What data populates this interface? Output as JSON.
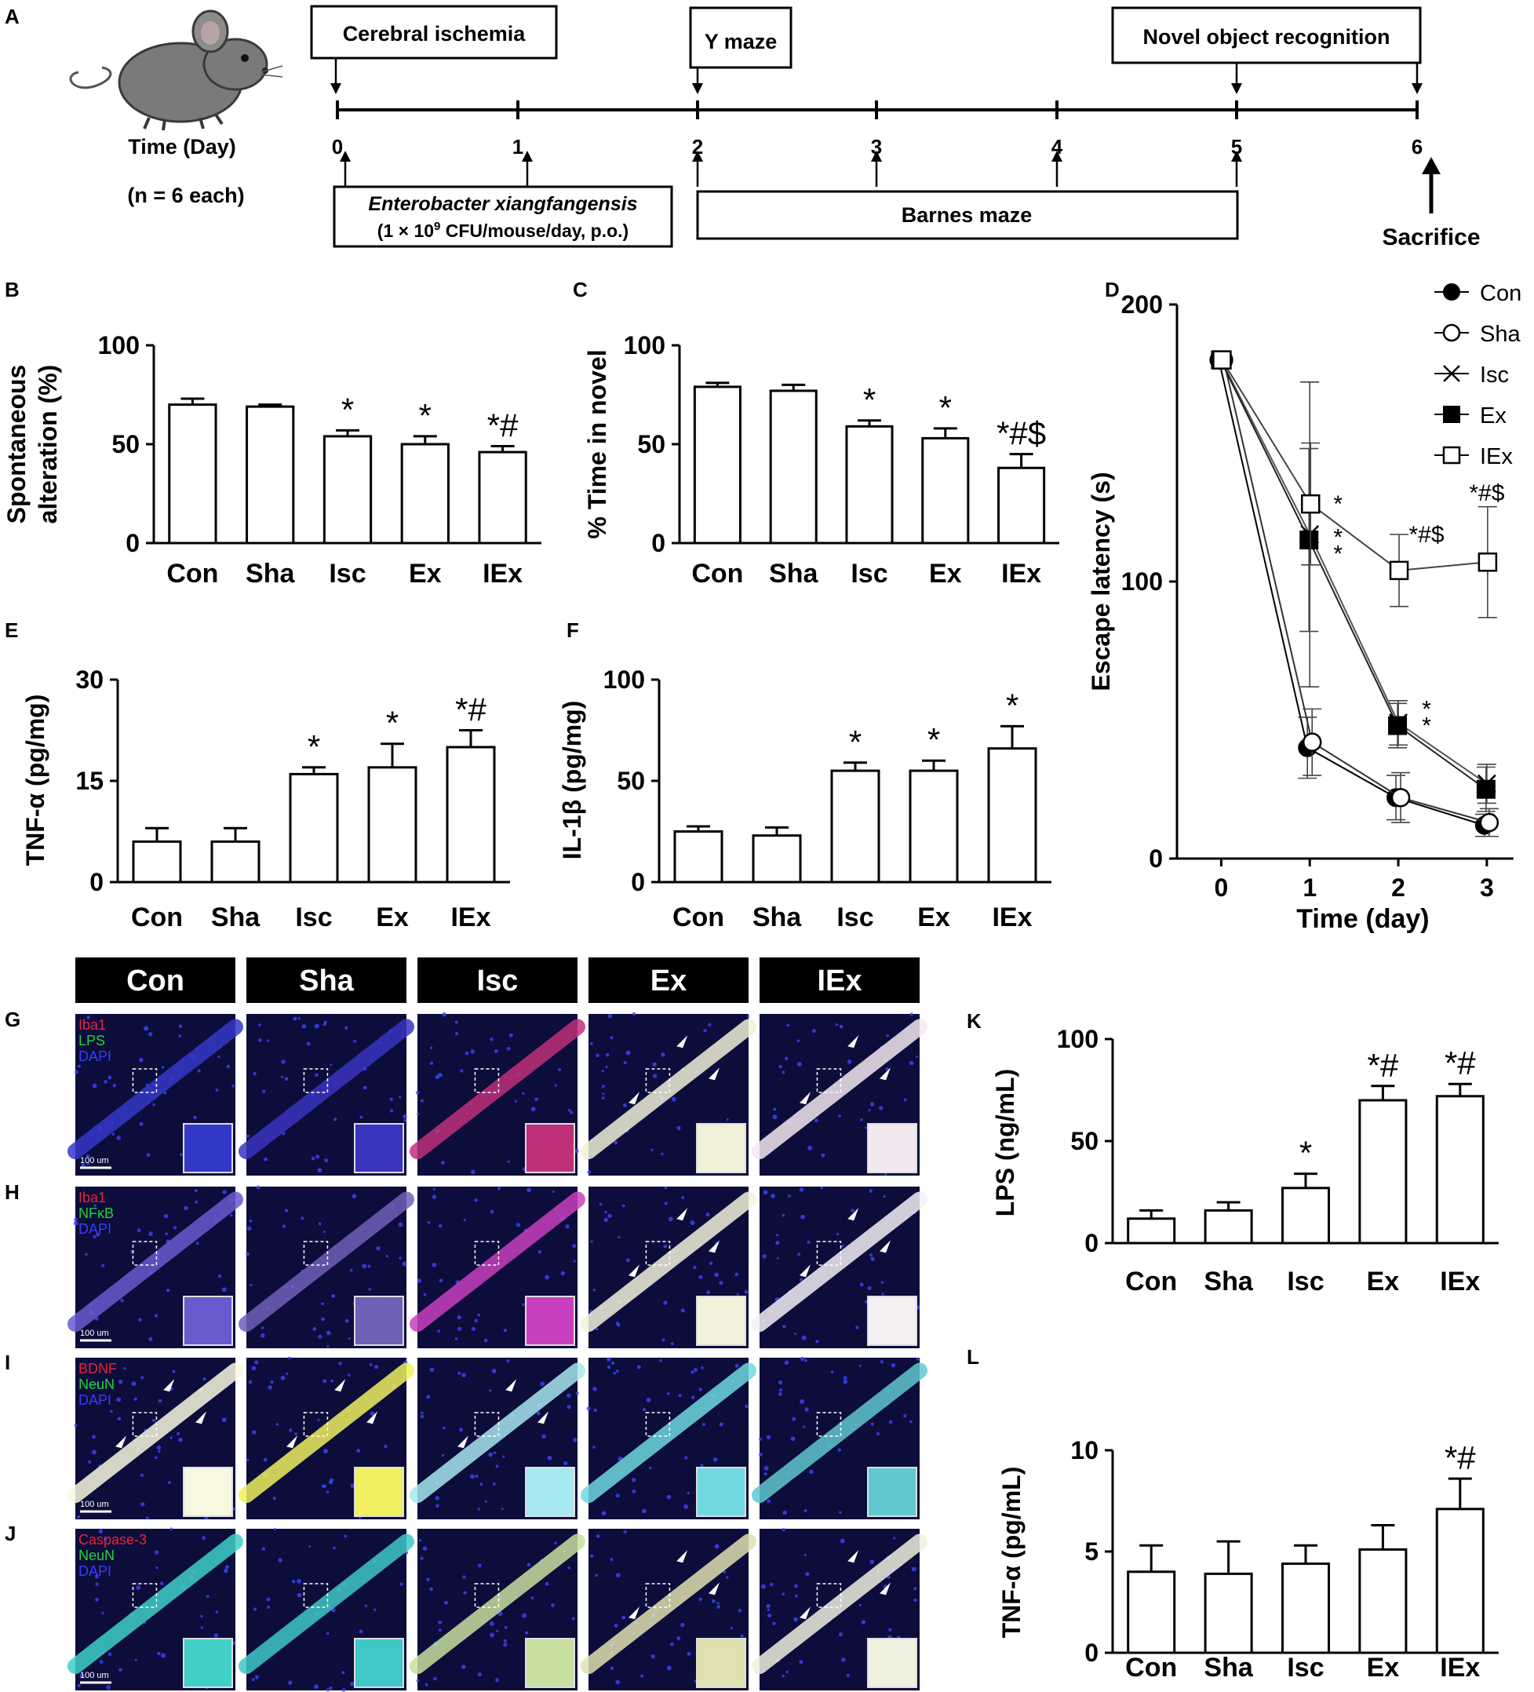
{
  "panel_letters": [
    "A",
    "B",
    "C",
    "D",
    "E",
    "F",
    "G",
    "H",
    "I",
    "J",
    "K",
    "L"
  ],
  "timeline": {
    "time_label": "Time (Day)",
    "n_label": "(n = 6 each)",
    "days": [
      "0",
      "1",
      "2",
      "3",
      "4",
      "5",
      "6"
    ],
    "events": {
      "ischemia": "Cerebral ischemia",
      "ymaze": "Y maze",
      "nor": "Novel object recognition",
      "barnes": "Barnes maze",
      "sacrifice": "Sacrifice"
    },
    "treatment_name": "Enterobacter xiangfangensis",
    "treatment_dose_a": "(1 × 10",
    "treatment_dose_sup": "9",
    "treatment_dose_b": " CFU/mouse/day, p.o.)"
  },
  "micrograph": {
    "column_headers": [
      "Con",
      "Sha",
      "Isc",
      "Ex",
      "IEx"
    ],
    "rows": [
      {
        "letter": "G",
        "stains": [
          "Iba1",
          "LPS",
          "DAPI"
        ],
        "stain_colors": [
          "#e8243a",
          "#23d23a",
          "#3b3bff"
        ]
      },
      {
        "letter": "H",
        "stains": [
          "Iba1",
          "NFκB",
          "DAPI"
        ],
        "stain_colors": [
          "#e8243a",
          "#23d23a",
          "#3b3bff"
        ]
      },
      {
        "letter": "I",
        "stains": [
          "BDNF",
          "NeuN",
          "DAPI"
        ],
        "stain_colors": [
          "#e8243a",
          "#23d23a",
          "#3b3bff"
        ]
      },
      {
        "letter": "J",
        "stains": [
          "Caspase-3",
          "NeuN",
          "DAPI"
        ],
        "stain_colors": [
          "#e8243a",
          "#23d23a",
          "#3b3bff"
        ]
      }
    ],
    "scale_bar": "100 um"
  },
  "chart_data": [
    {
      "id": "B",
      "type": "bar",
      "ylabel": [
        "Spontaneous",
        "alteration (%)"
      ],
      "categories": [
        "Con",
        "Sha",
        "Isc",
        "Ex",
        "IEx"
      ],
      "values": [
        70,
        69,
        54,
        50,
        46
      ],
      "errors": [
        3,
        1,
        3,
        4,
        3
      ],
      "annotations": [
        "",
        "",
        "*",
        "*",
        "*#"
      ],
      "ylim": [
        0,
        100
      ],
      "yticks": [
        0,
        50,
        100
      ]
    },
    {
      "id": "C",
      "type": "bar",
      "ylabel": [
        "% Time in novel"
      ],
      "categories": [
        "Con",
        "Sha",
        "Isc",
        "Ex",
        "IEx"
      ],
      "values": [
        79,
        77,
        59,
        53,
        38
      ],
      "errors": [
        2,
        3,
        3,
        5,
        7
      ],
      "annotations": [
        "",
        "",
        "*",
        "*",
        "*#$"
      ],
      "ylim": [
        0,
        100
      ],
      "yticks": [
        0,
        50,
        100
      ]
    },
    {
      "id": "D",
      "type": "line",
      "xlabel": "Time (day)",
      "ylabel": "Escape latency (s)",
      "x": [
        0,
        1,
        2,
        3
      ],
      "xlim": [
        -0.5,
        3.4
      ],
      "ylim": [
        0,
        200
      ],
      "yticks": [
        0,
        100,
        200
      ],
      "series": [
        {
          "name": "Con",
          "marker": "filled-circle",
          "values": [
            180,
            40,
            22,
            12
          ],
          "errors": [
            0,
            11,
            8,
            4
          ]
        },
        {
          "name": "Sha",
          "marker": "open-circle",
          "values": [
            180,
            42,
            22,
            13
          ],
          "errors": [
            0,
            12,
            9,
            5
          ]
        },
        {
          "name": "Isc",
          "marker": "cross",
          "values": [
            180,
            117,
            49,
            27
          ],
          "errors": [
            0,
            55,
            8,
            7
          ]
        },
        {
          "name": "Ex",
          "marker": "filled-square",
          "values": [
            180,
            115,
            48,
            25
          ],
          "errors": [
            0,
            33,
            8,
            8
          ]
        },
        {
          "name": "IEx",
          "marker": "open-square",
          "values": [
            180,
            128,
            104,
            107
          ],
          "errors": [
            0,
            22,
            13,
            20
          ]
        }
      ],
      "annotations": [
        {
          "x": 1,
          "y": 128,
          "text": "*"
        },
        {
          "x": 1,
          "y": 116,
          "text": "*"
        },
        {
          "x": 1,
          "y": 110,
          "text": "*"
        },
        {
          "x": 2,
          "y": 117,
          "text": "*#$"
        },
        {
          "x": 2,
          "y": 54,
          "text": "*"
        },
        {
          "x": 2,
          "y": 48,
          "text": "*"
        },
        {
          "x": 3,
          "y": 132,
          "text": "*#$"
        }
      ]
    },
    {
      "id": "E",
      "type": "bar",
      "ylabel": [
        "TNF-α (pg/mg)"
      ],
      "categories": [
        "Con",
        "Sha",
        "Isc",
        "Ex",
        "IEx"
      ],
      "values": [
        6,
        6,
        16,
        17,
        20
      ],
      "errors": [
        2,
        2,
        1,
        3.5,
        2.5
      ],
      "annotations": [
        "",
        "",
        "*",
        "*",
        "*#"
      ],
      "ylim": [
        0,
        30
      ],
      "yticks": [
        0,
        15,
        30
      ]
    },
    {
      "id": "F",
      "type": "bar",
      "ylabel": [
        "IL-1β (pg/mg)"
      ],
      "categories": [
        "Con",
        "Sha",
        "Isc",
        "Ex",
        "IEx"
      ],
      "values": [
        25,
        23,
        55,
        55,
        66
      ],
      "errors": [
        2.5,
        4,
        4,
        5,
        11
      ],
      "annotations": [
        "",
        "",
        "*",
        "*",
        "*"
      ],
      "ylim": [
        0,
        100
      ],
      "yticks": [
        0,
        50,
        100
      ]
    },
    {
      "id": "K",
      "type": "bar",
      "ylabel": [
        "LPS (ng/mL)"
      ],
      "categories": [
        "Con",
        "Sha",
        "Isc",
        "Ex",
        "IEx"
      ],
      "values": [
        12,
        16,
        27,
        70,
        72
      ],
      "errors": [
        4,
        4,
        7,
        7,
        6
      ],
      "annotations": [
        "",
        "",
        "*",
        "*#",
        "*#"
      ],
      "ylim": [
        0,
        100
      ],
      "yticks": [
        0,
        50,
        100
      ]
    },
    {
      "id": "L",
      "type": "bar",
      "ylabel": [
        "TNF-α (pg/mL)"
      ],
      "categories": [
        "Con",
        "Sha",
        "Isc",
        "Ex",
        "IEx"
      ],
      "values": [
        4,
        3.9,
        4.4,
        5.1,
        7.1
      ],
      "errors": [
        1.3,
        1.6,
        0.9,
        1.2,
        1.5
      ],
      "annotations": [
        "",
        "",
        "",
        "",
        "*#"
      ],
      "ylim": [
        0,
        10
      ],
      "yticks": [
        0,
        5,
        10
      ]
    }
  ]
}
